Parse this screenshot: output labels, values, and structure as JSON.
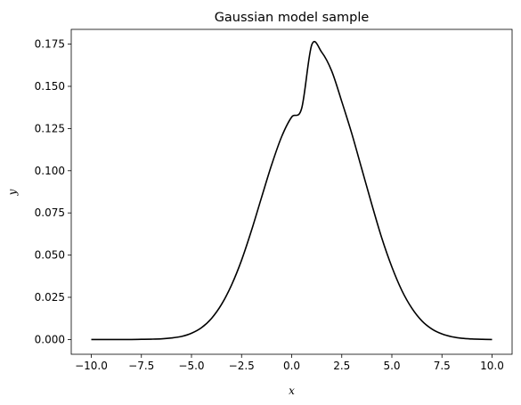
{
  "chart_data": {
    "type": "line",
    "title": "Gaussian model sample",
    "xlabel": "x",
    "ylabel": "y",
    "xlim": [
      -11.0,
      11.0
    ],
    "ylim": [
      -0.00875,
      0.18375
    ],
    "xticks": [
      -10.0,
      -7.5,
      -5.0,
      -2.5,
      0.0,
      2.5,
      5.0,
      7.5,
      10.0
    ],
    "xtick_labels": [
      "−10.0",
      "−7.5",
      "−5.0",
      "−2.5",
      "0.0",
      "2.5",
      "5.0",
      "7.5",
      "10.0"
    ],
    "yticks": [
      0.0,
      0.025,
      0.05,
      0.075,
      0.1,
      0.125,
      0.15,
      0.175
    ],
    "ytick_labels": [
      "0.000",
      "0.025",
      "0.050",
      "0.075",
      "0.100",
      "0.125",
      "0.150",
      "0.175"
    ],
    "grid": false,
    "series": [
      {
        "color": "#000000",
        "x": [
          -10,
          -9.5,
          -9,
          -8.5,
          -8,
          -7.5,
          -7,
          -6.5,
          -6,
          -5.5,
          -5,
          -4.5,
          -4,
          -3.5,
          -3,
          -2.5,
          -2,
          -1.5,
          -1,
          -0.5,
          0,
          0.5,
          1,
          1.5,
          2,
          2.5,
          3,
          3.5,
          4,
          4.5,
          5,
          5.5,
          6,
          6.5,
          7,
          7.5,
          8,
          8.5,
          9,
          9.5,
          10
        ],
        "y": [
          0.0,
          0.0,
          0.0,
          0.0,
          0.0,
          0.0001,
          0.0002,
          0.0004,
          0.0009,
          0.0018,
          0.0037,
          0.007,
          0.0125,
          0.0208,
          0.0323,
          0.047,
          0.0648,
          0.0843,
          0.1035,
          0.1202,
          0.1318,
          0.137,
          0.1745,
          0.1702,
          0.159,
          0.141,
          0.122,
          0.101,
          0.08,
          0.06,
          0.043,
          0.029,
          0.0185,
          0.011,
          0.0062,
          0.0033,
          0.0016,
          0.0007,
          0.0003,
          0.0001,
          0.0
        ]
      }
    ]
  }
}
